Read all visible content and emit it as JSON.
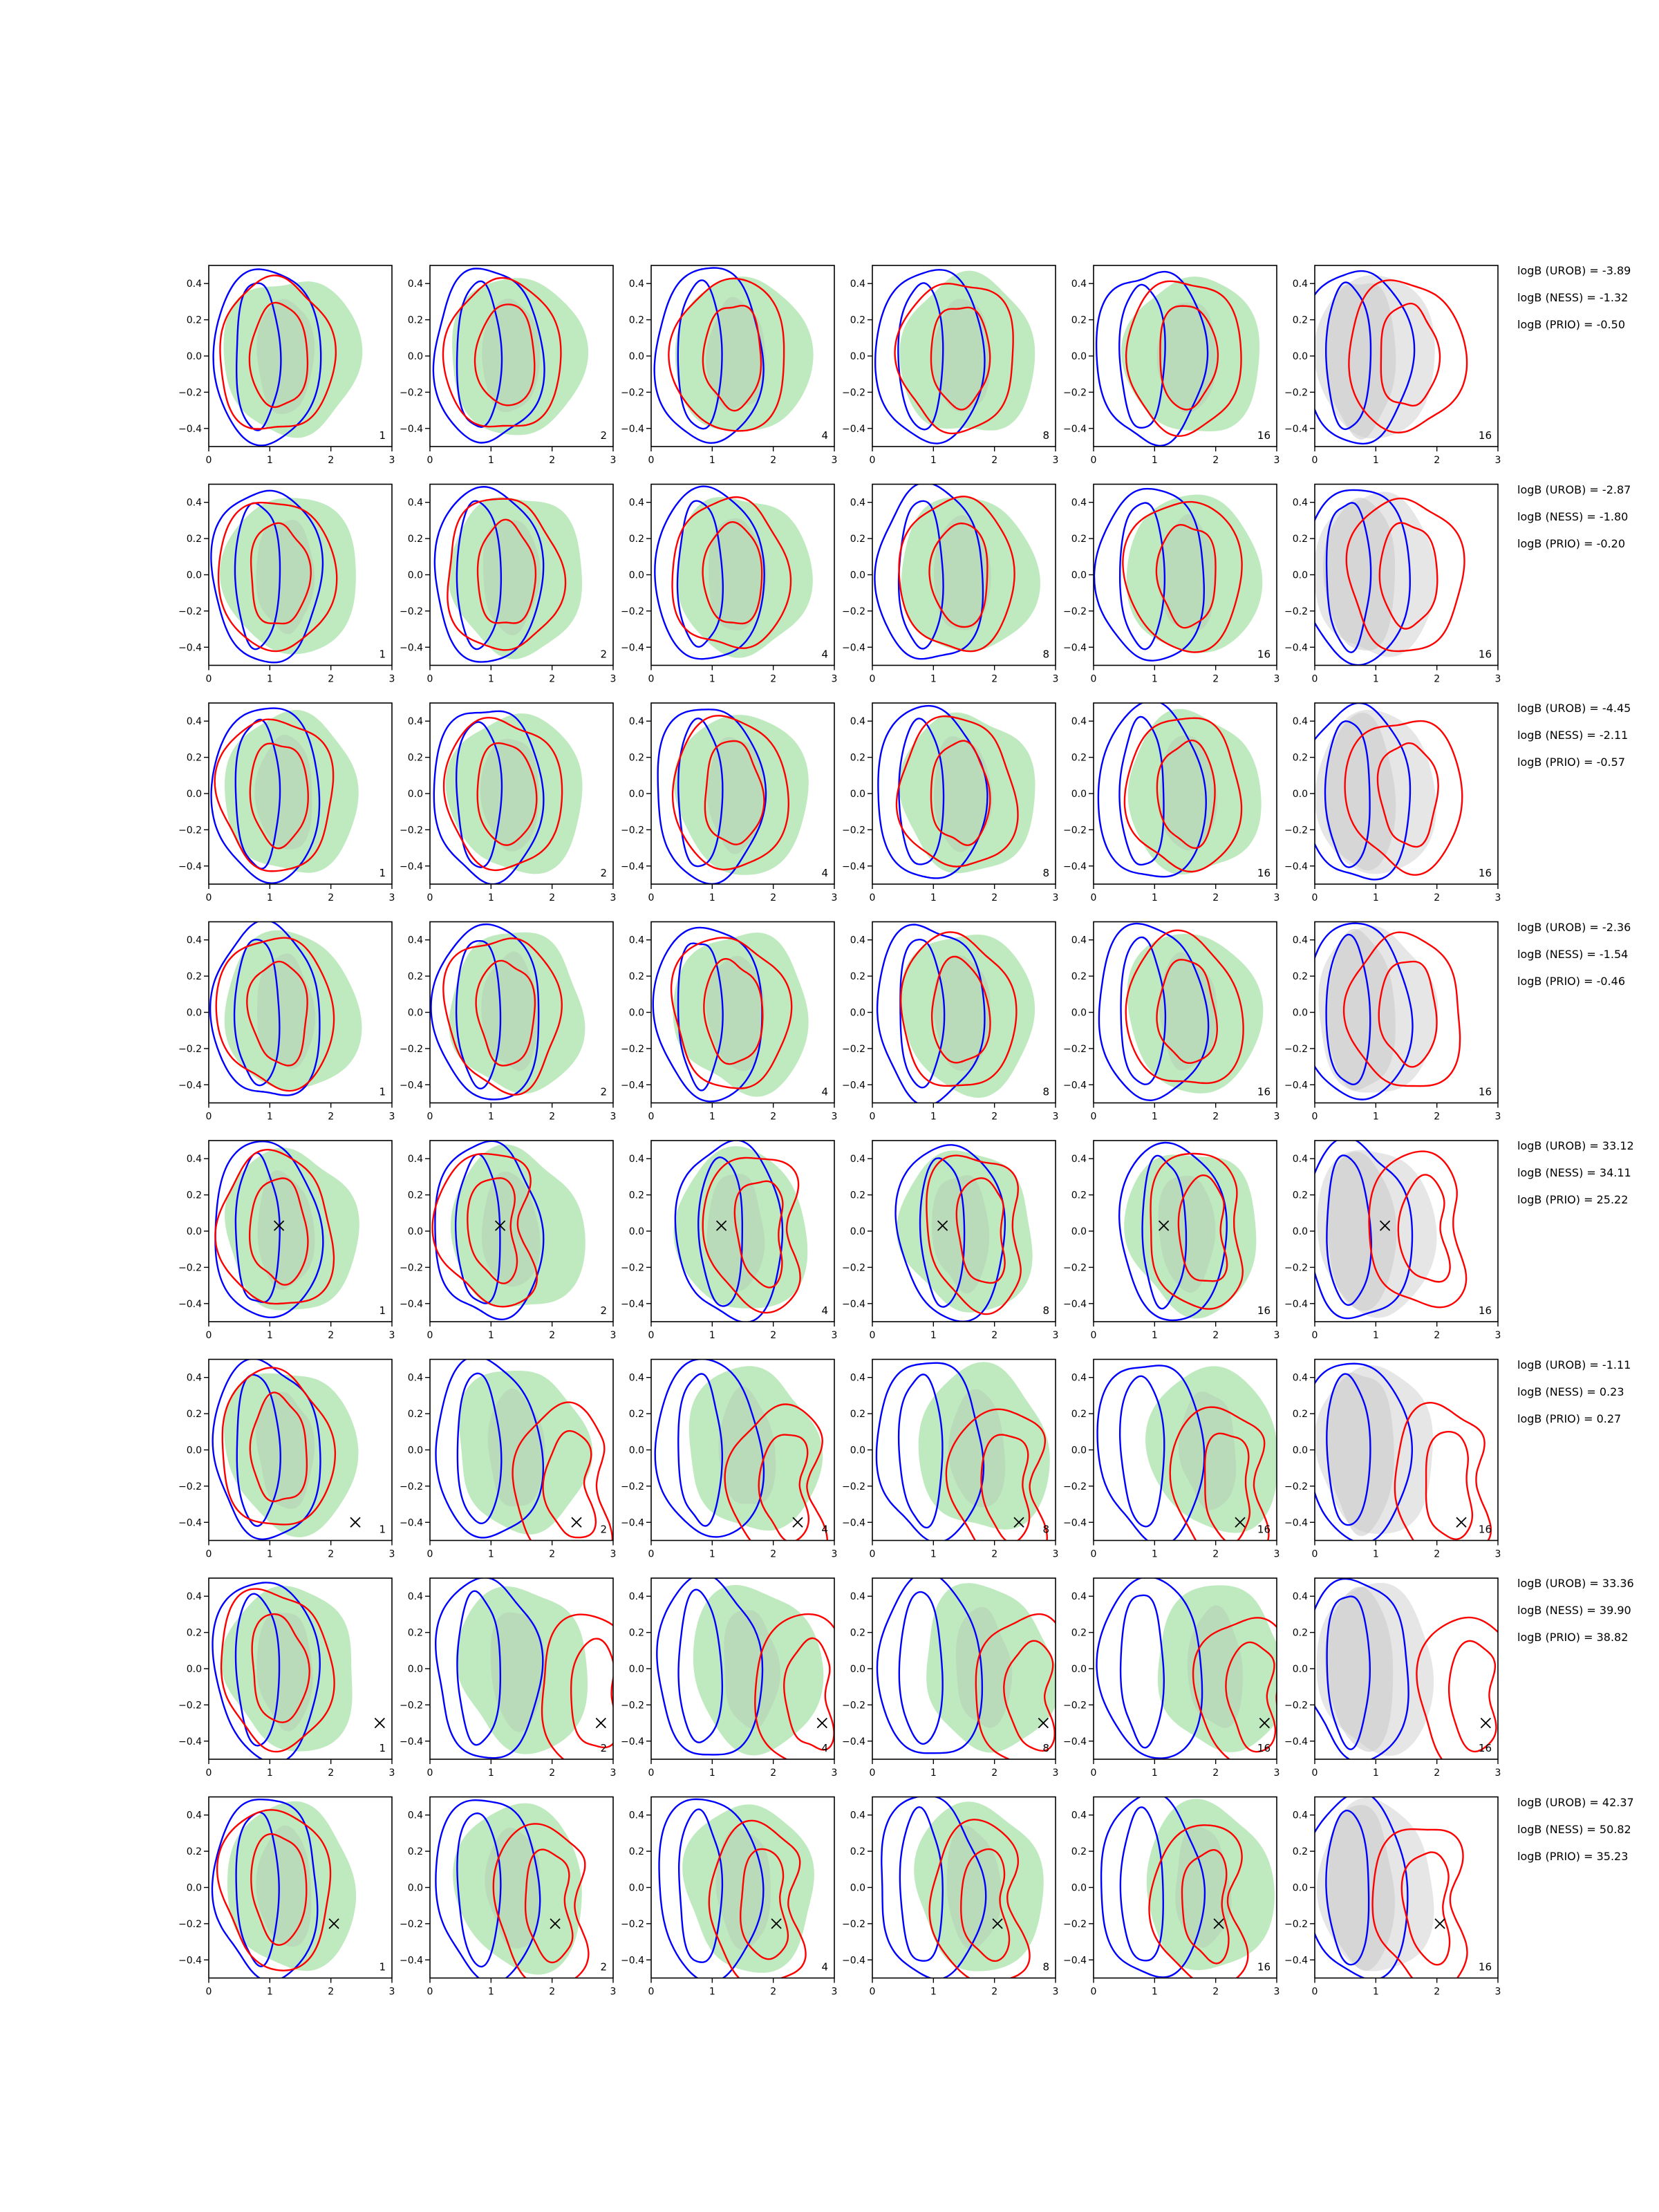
{
  "chart_data": {
    "type": "contour-grid",
    "rows": 8,
    "cols": 6,
    "xlim": [
      0,
      3
    ],
    "ylim": [
      -0.5,
      0.5
    ],
    "xticks": [
      "0",
      "1",
      "2",
      "3"
    ],
    "yticks": [
      "−0.4",
      "−0.2",
      "0.0",
      "0.2",
      "0.4"
    ],
    "column_labels": [
      "1",
      "2",
      "4",
      "8",
      "16",
      "16"
    ],
    "series": [
      {
        "name": "",
        "color": "#0000ff",
        "kind": "contour-line"
      },
      {
        "name": "",
        "color": "#ff0000",
        "kind": "contour-line"
      },
      {
        "name": "",
        "color": "#b8e8b8",
        "kind": "filled-density"
      },
      {
        "name": "",
        "color": "#cccccc",
        "kind": "filled-density"
      }
    ],
    "colors": {
      "blue": "#0000ff",
      "red": "#ff0000",
      "green": "#bfeabf",
      "grey": "#c8c8c8",
      "grey_light": "#e6e6e6"
    },
    "panel_rows": [
      {
        "marker": null,
        "annotations": [
          "logB (UROB) = -3.89",
          "logB (NESS) = -1.32",
          "logB (PRIO) = -0.50"
        ]
      },
      {
        "marker": null,
        "annotations": [
          "logB (UROB) = -2.87",
          "logB (NESS) = -1.80",
          "logB (PRIO) = -0.20"
        ]
      },
      {
        "marker": null,
        "annotations": [
          "logB (UROB) = -4.45",
          "logB (NESS) = -2.11",
          "logB (PRIO) = -0.57"
        ]
      },
      {
        "marker": null,
        "annotations": [
          "logB (UROB) = -2.36",
          "logB (NESS) = -1.54",
          "logB (PRIO) = -0.46"
        ]
      },
      {
        "marker": [
          1.15,
          0.03
        ],
        "annotations": [
          "logB (UROB) = 33.12",
          "logB (NESS) = 34.11",
          "logB (PRIO) = 25.22"
        ]
      },
      {
        "marker": [
          2.4,
          -0.4
        ],
        "annotations": [
          "logB (UROB) = -1.11",
          "logB (NESS) = 0.23",
          "logB (PRIO) = 0.27"
        ]
      },
      {
        "marker": [
          2.8,
          -0.3
        ],
        "annotations": [
          "logB (UROB) = 33.36",
          "logB (NESS) = 39.90",
          "logB (PRIO) = 38.82"
        ]
      },
      {
        "marker": [
          2.05,
          -0.2
        ],
        "annotations": [
          "logB (UROB) = 42.37",
          "logB (NESS) = 50.82",
          "logB (PRIO) = 35.23"
        ]
      }
    ]
  }
}
